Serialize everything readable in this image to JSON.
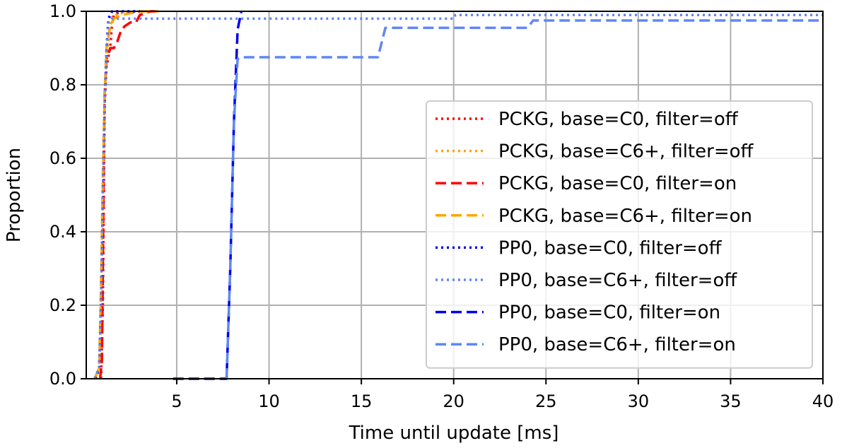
{
  "chart_data": {
    "type": "line",
    "title": "",
    "xlabel": "Time until update [ms]",
    "ylabel": "Proportion",
    "xlim": [
      0.1,
      40
    ],
    "ylim": [
      0,
      1
    ],
    "xticks": [
      5,
      10,
      15,
      20,
      25,
      30,
      35,
      40
    ],
    "xtick_labels": [
      "5",
      "10",
      "15",
      "20",
      "25",
      "30",
      "35",
      "40"
    ],
    "yticks": [
      0,
      0.2,
      0.4,
      0.6,
      0.8,
      1.0
    ],
    "ytick_labels": [
      "0.0",
      "0.2",
      "0.4",
      "0.6",
      "0.8",
      "1.0"
    ],
    "grid": true,
    "legend_position": "right",
    "series": [
      {
        "name": "PCKG, base=C0, filter=off",
        "color": "#ff0000",
        "dash": "dotted",
        "x": [
          0.9,
          1.0,
          1.05,
          1.1,
          1.2,
          1.4,
          1.5,
          1.6,
          2.0
        ],
        "y": [
          0.0,
          0.2,
          0.5,
          0.75,
          0.85,
          0.9,
          0.97,
          0.99,
          1.0
        ]
      },
      {
        "name": "PCKG, base=C6+, filter=off",
        "color": "#ffa500",
        "dash": "dotted",
        "x": [
          0.55,
          0.8,
          0.9,
          1.0,
          1.1,
          1.2,
          1.4,
          1.5,
          1.7,
          2.0,
          3.2
        ],
        "y": [
          0.0,
          0.02,
          0.2,
          0.5,
          0.75,
          0.88,
          0.96,
          0.985,
          0.99,
          0.995,
          1.0
        ]
      },
      {
        "name": "PCKG, base=C0, filter=on",
        "color": "#ff0000",
        "dash": "dashed",
        "x": [
          0.85,
          0.95,
          1.0,
          1.05,
          1.1,
          1.2,
          1.4,
          1.6,
          1.8,
          2.0,
          2.2,
          2.5,
          2.8,
          3.0,
          3.3,
          3.6,
          4.0
        ],
        "y": [
          0.0,
          0.05,
          0.3,
          0.6,
          0.78,
          0.87,
          0.9,
          0.9,
          0.92,
          0.95,
          0.96,
          0.97,
          0.97,
          0.99,
          0.995,
          1.0,
          1.0
        ]
      },
      {
        "name": "PCKG, base=C6+, filter=on",
        "color": "#ffa500",
        "dash": "dashed",
        "x": [
          0.55,
          0.8,
          0.9,
          1.0,
          1.1,
          1.2,
          1.4,
          1.6,
          2.0,
          2.5,
          3.0,
          4.0
        ],
        "y": [
          0.0,
          0.03,
          0.25,
          0.55,
          0.78,
          0.9,
          0.96,
          0.98,
          0.99,
          0.995,
          1.0,
          1.0
        ]
      },
      {
        "name": "PP0, base=C0, filter=off",
        "color": "#0000ee",
        "dash": "dotted",
        "x": [
          0.6,
          0.8,
          0.9,
          1.0,
          1.1,
          1.2,
          1.3,
          1.5,
          3.0
        ],
        "y": [
          0.0,
          0.03,
          0.2,
          0.5,
          0.75,
          0.9,
          0.98,
          1.0,
          1.0
        ]
      },
      {
        "name": "PP0, base=C6+, filter=off",
        "color": "#5f87f5",
        "dash": "dotted",
        "x": [
          0.55,
          0.8,
          0.9,
          1.0,
          1.1,
          1.2,
          1.3,
          1.5,
          20.0,
          20.1,
          40.0
        ],
        "y": [
          0.0,
          0.03,
          0.2,
          0.5,
          0.75,
          0.9,
          0.97,
          0.98,
          0.98,
          0.99,
          0.99
        ]
      },
      {
        "name": "PP0, base=C0, filter=on",
        "color": "#0000ee",
        "dash": "dashed",
        "x": [
          4.8,
          7.7,
          7.9,
          8.1,
          8.3,
          8.5
        ],
        "y": [
          0.0,
          0.0,
          0.3,
          0.7,
          0.95,
          1.0
        ]
      },
      {
        "name": "PP0, base=C6+, filter=on",
        "color": "#5f87f5",
        "dash": "dashed",
        "x": [
          7.7,
          7.9,
          8.1,
          8.3,
          8.5,
          15.9,
          16.3,
          24.0,
          24.3,
          40.0
        ],
        "y": [
          0.0,
          0.3,
          0.7,
          0.87,
          0.875,
          0.875,
          0.955,
          0.955,
          0.975,
          0.975
        ]
      }
    ]
  }
}
